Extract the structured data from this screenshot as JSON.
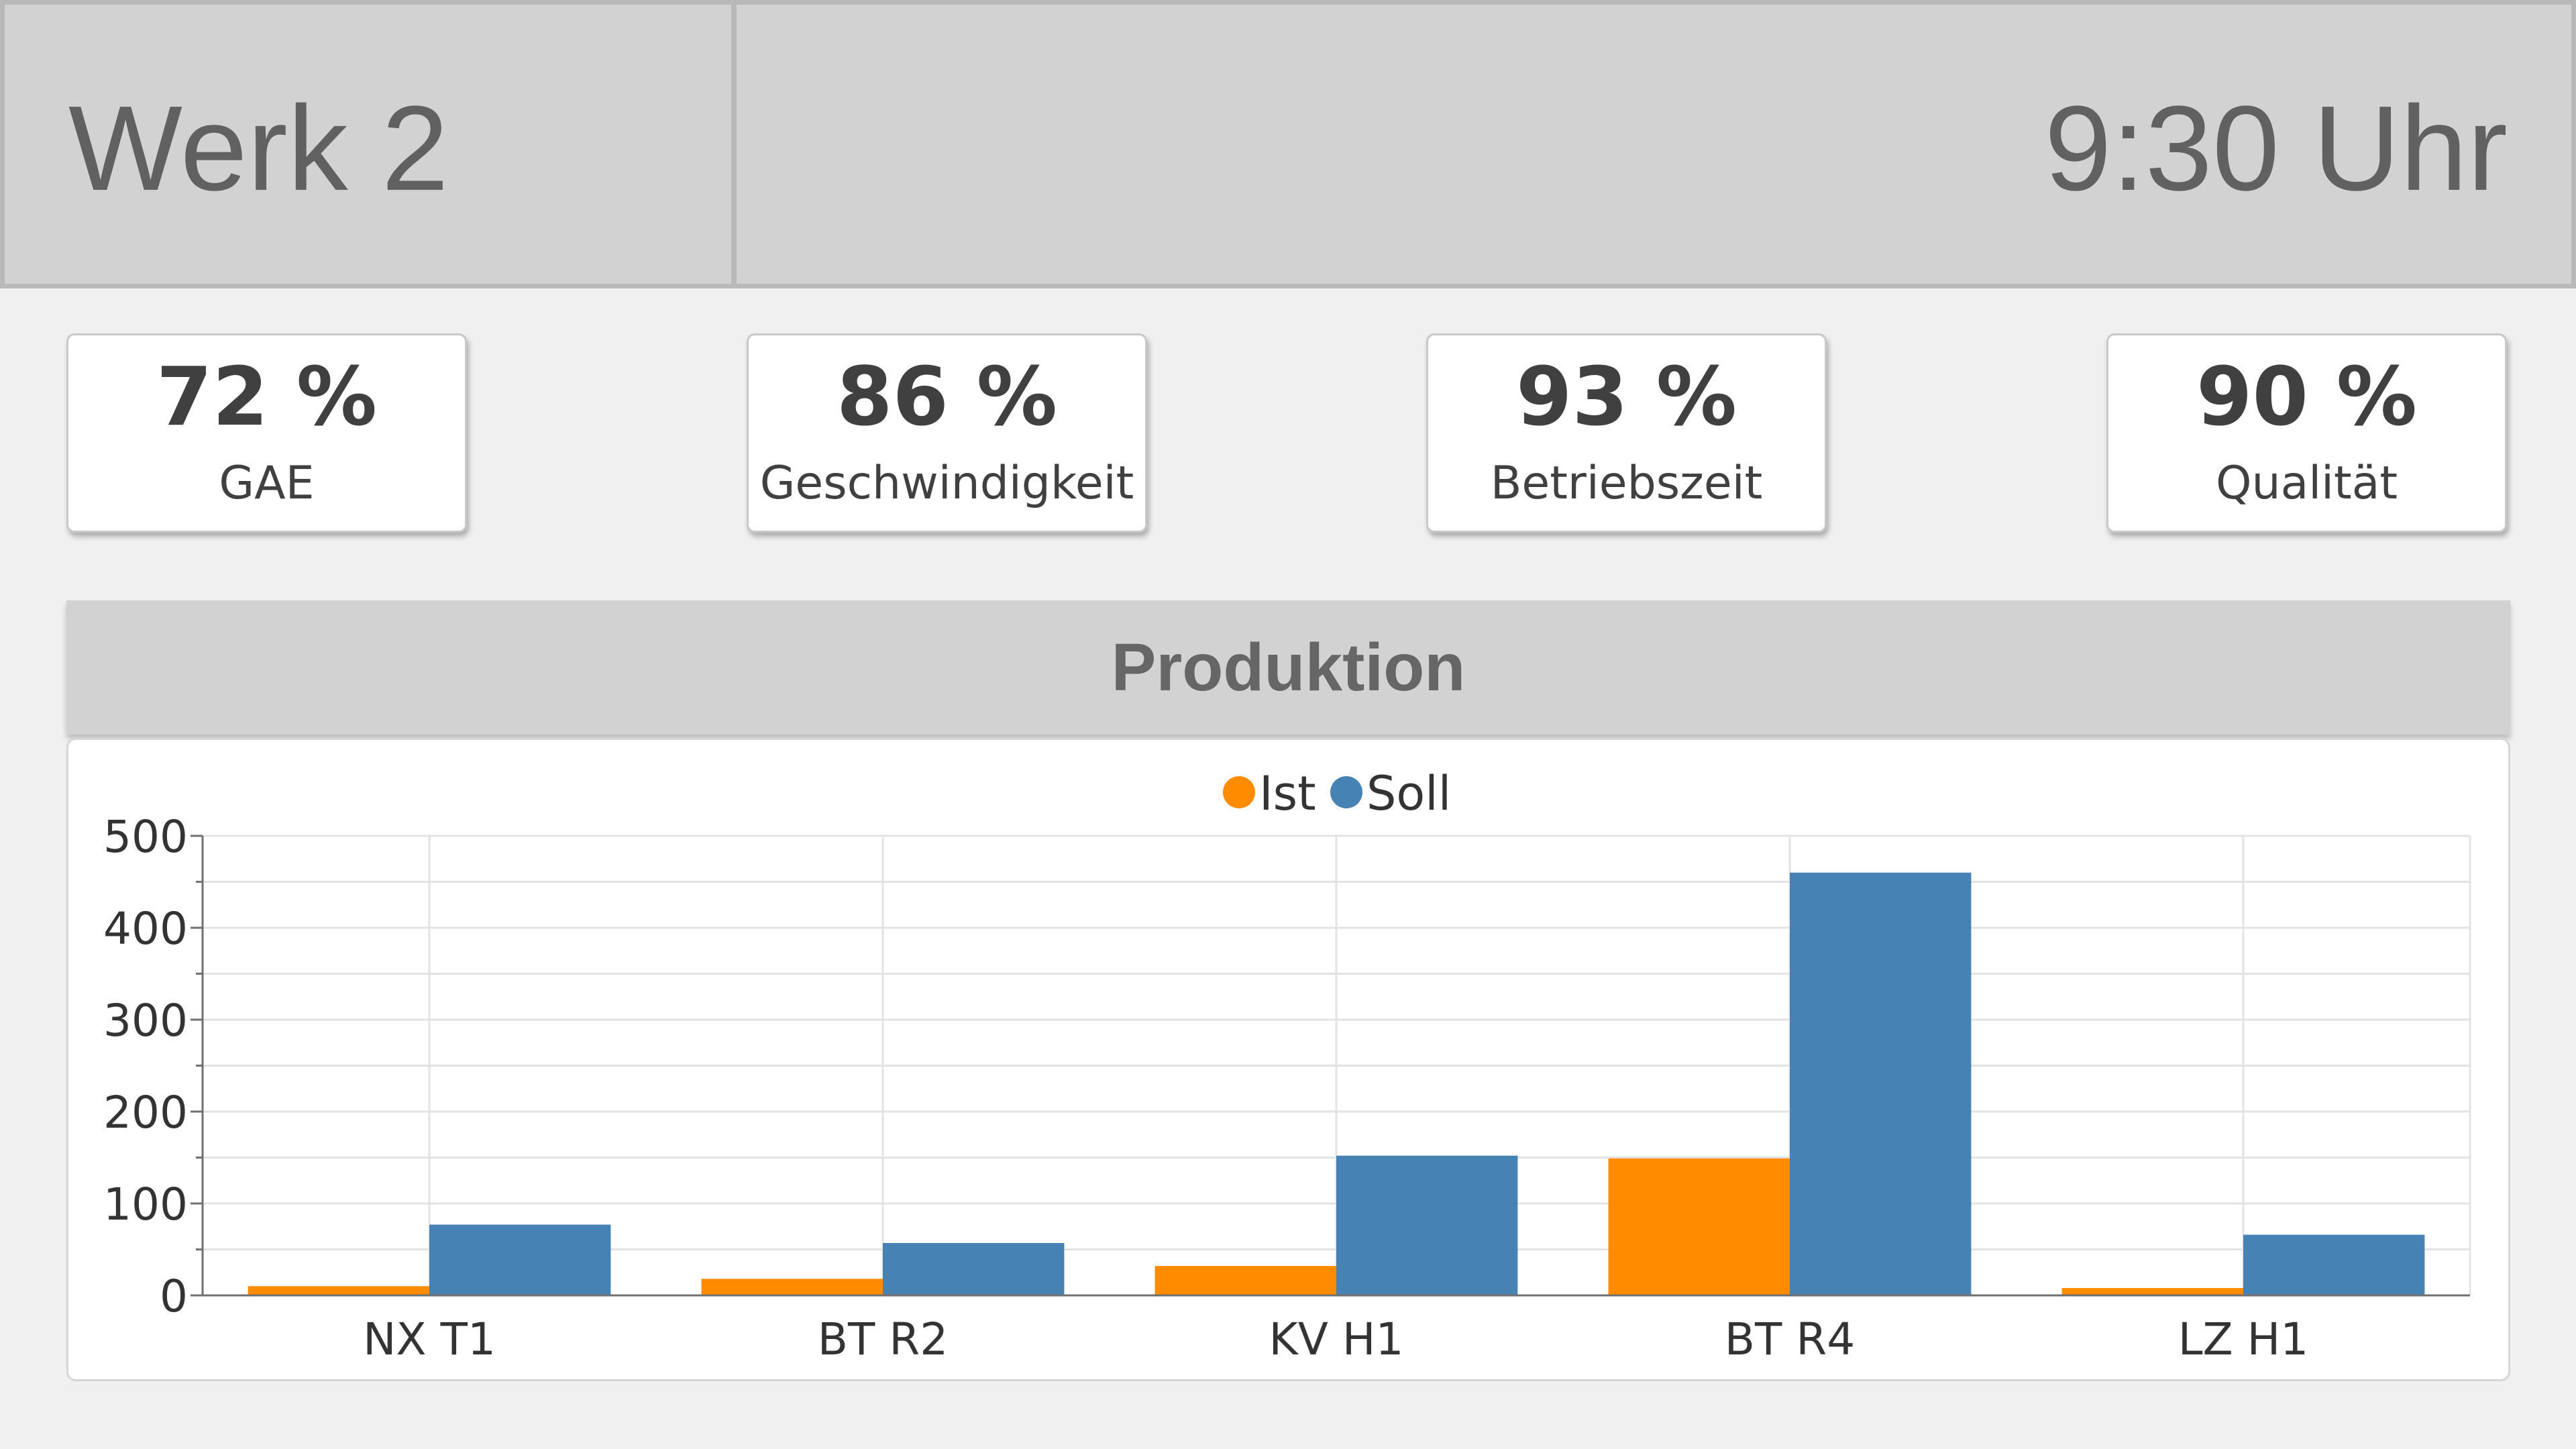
{
  "header": {
    "plant_title": "Werk 2",
    "clock": "9:30 Uhr"
  },
  "kpis": [
    {
      "value": "72 %",
      "label": "GAE"
    },
    {
      "value": "86 %",
      "label": "Geschwindigkeit"
    },
    {
      "value": "93 %",
      "label": "Betriebszeit"
    },
    {
      "value": "90 %",
      "label": "Qualität"
    }
  ],
  "section": {
    "title": "Produktion"
  },
  "colors": {
    "ist": "#ff8c00",
    "soll": "#4682b4",
    "header_bg": "#d2d2d2"
  },
  "chart_data": {
    "type": "bar",
    "categories": [
      "NX T1",
      "BT R2",
      "KV H1",
      "BT R4",
      "LZ H1"
    ],
    "series": [
      {
        "name": "Ist",
        "values": [
          10,
          18,
          32,
          149,
          8
        ]
      },
      {
        "name": "Soll",
        "values": [
          77,
          57,
          152,
          460,
          66
        ]
      }
    ],
    "ylim": [
      0,
      500
    ],
    "yticks": [
      0,
      100,
      200,
      300,
      400,
      500
    ],
    "grid": true,
    "legend": "top-center",
    "title": "",
    "xlabel": "",
    "ylabel": ""
  }
}
